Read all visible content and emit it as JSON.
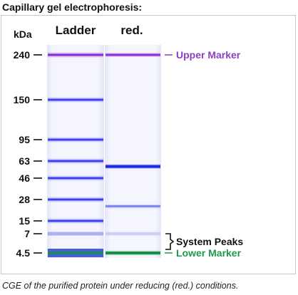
{
  "title": "Capillary gel electrophoresis:",
  "unit_label": "kDa",
  "lanes": [
    {
      "label": "Ladder"
    },
    {
      "label": "red."
    }
  ],
  "ladder_markers": [
    {
      "label": "240",
      "kda": 240
    },
    {
      "label": "150",
      "kda": 150
    },
    {
      "label": "95",
      "kda": 95
    },
    {
      "label": "63",
      "kda": 63
    },
    {
      "label": "46",
      "kda": 46
    },
    {
      "label": "28",
      "kda": 28
    },
    {
      "label": "15",
      "kda": 15
    },
    {
      "label": "7",
      "kda": 7
    },
    {
      "label": "4.5",
      "kda": 4.5
    }
  ],
  "sample_bands": [
    {
      "role": "upper-marker",
      "kda": 240
    },
    {
      "role": "protein",
      "kda": 57
    },
    {
      "role": "protein",
      "kda": 23
    },
    {
      "role": "system-peak",
      "kda": 7
    },
    {
      "role": "lower-marker",
      "kda": 4.5
    }
  ],
  "annotations": {
    "upper_marker": "Upper Marker",
    "system_peaks": "System Peaks",
    "lower_marker": "Lower Marker"
  },
  "colors": {
    "ladder_band": "#3f3ff0",
    "upper_marker": "#8a2ed8",
    "lower_marker": "#149243",
    "upper_label": "#8a3fc4",
    "lower_label": "#1f9a4c",
    "lane_bg": "#f2f3fc"
  },
  "caption": "CGE of the purified protein under reducing (red.) conditions."
}
